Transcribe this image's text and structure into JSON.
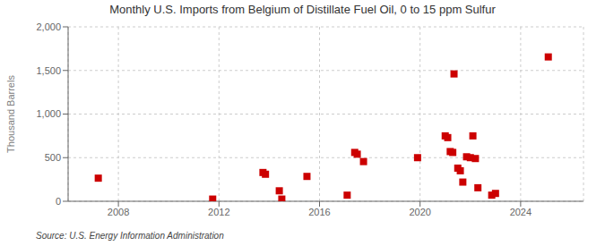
{
  "chart_data": {
    "type": "scatter",
    "title": "Monthly U.S. Imports from Belgium of Distillate Fuel Oil, 0 to 15 ppm Sulfur",
    "ylabel": "Thousand Barrels",
    "source": "Source: U.S. Energy Information Administration",
    "color": "#cc0000",
    "marker": "square",
    "grid": true,
    "xlim": [
      2006.0,
      2026.5
    ],
    "ylim": [
      0,
      2000
    ],
    "xticks": [
      2008,
      2012,
      2016,
      2020,
      2024
    ],
    "yticks": [
      0,
      500,
      {
        "value": 1000,
        "label": "1,000"
      },
      {
        "value": 1500,
        "label": "1,500"
      },
      {
        "value": 2000,
        "label": "2,000"
      }
    ],
    "x": [
      2007.2,
      2011.75,
      2013.75,
      2013.85,
      2014.4,
      2014.5,
      2015.5,
      2017.1,
      2017.4,
      2017.5,
      2017.75,
      2019.9,
      2021.0,
      2021.1,
      2021.2,
      2021.3,
      2021.35,
      2021.5,
      2021.6,
      2021.7,
      2021.85,
      2022.0,
      2022.1,
      2022.2,
      2022.3,
      2022.85,
      2023.0,
      2025.1
    ],
    "values": [
      265,
      25,
      330,
      310,
      120,
      25,
      285,
      70,
      560,
      540,
      455,
      500,
      750,
      730,
      570,
      560,
      1460,
      380,
      350,
      220,
      510,
      500,
      750,
      490,
      155,
      70,
      90,
      1655
    ]
  }
}
